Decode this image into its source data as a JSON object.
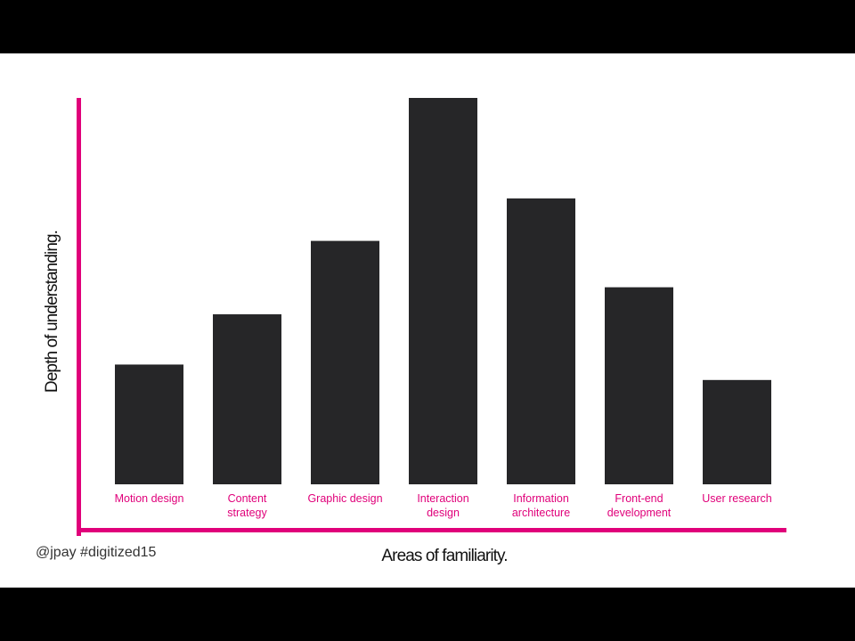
{
  "footer": {
    "credit": "@jpay #digitized15"
  },
  "colors": {
    "bar": "#262628",
    "axis": "#e0007a",
    "category_label": "#e0007a",
    "background": "#ffffff",
    "frame": "#000000"
  },
  "chart_data": {
    "type": "bar",
    "title": "",
    "xlabel": "Areas of familiarity.",
    "ylabel": "Depth of understanding.",
    "categories": [
      [
        "Motion design"
      ],
      [
        "Content",
        "strategy"
      ],
      [
        "Graphic design"
      ],
      [
        "Interaction",
        "design"
      ],
      [
        "Information",
        "architecture"
      ],
      [
        "Front-end",
        "development"
      ],
      [
        "User research"
      ]
    ],
    "values": [
      31,
      44,
      63,
      100,
      74,
      51,
      27
    ],
    "ylim": [
      0,
      100
    ],
    "grid": false,
    "legend": "none"
  }
}
